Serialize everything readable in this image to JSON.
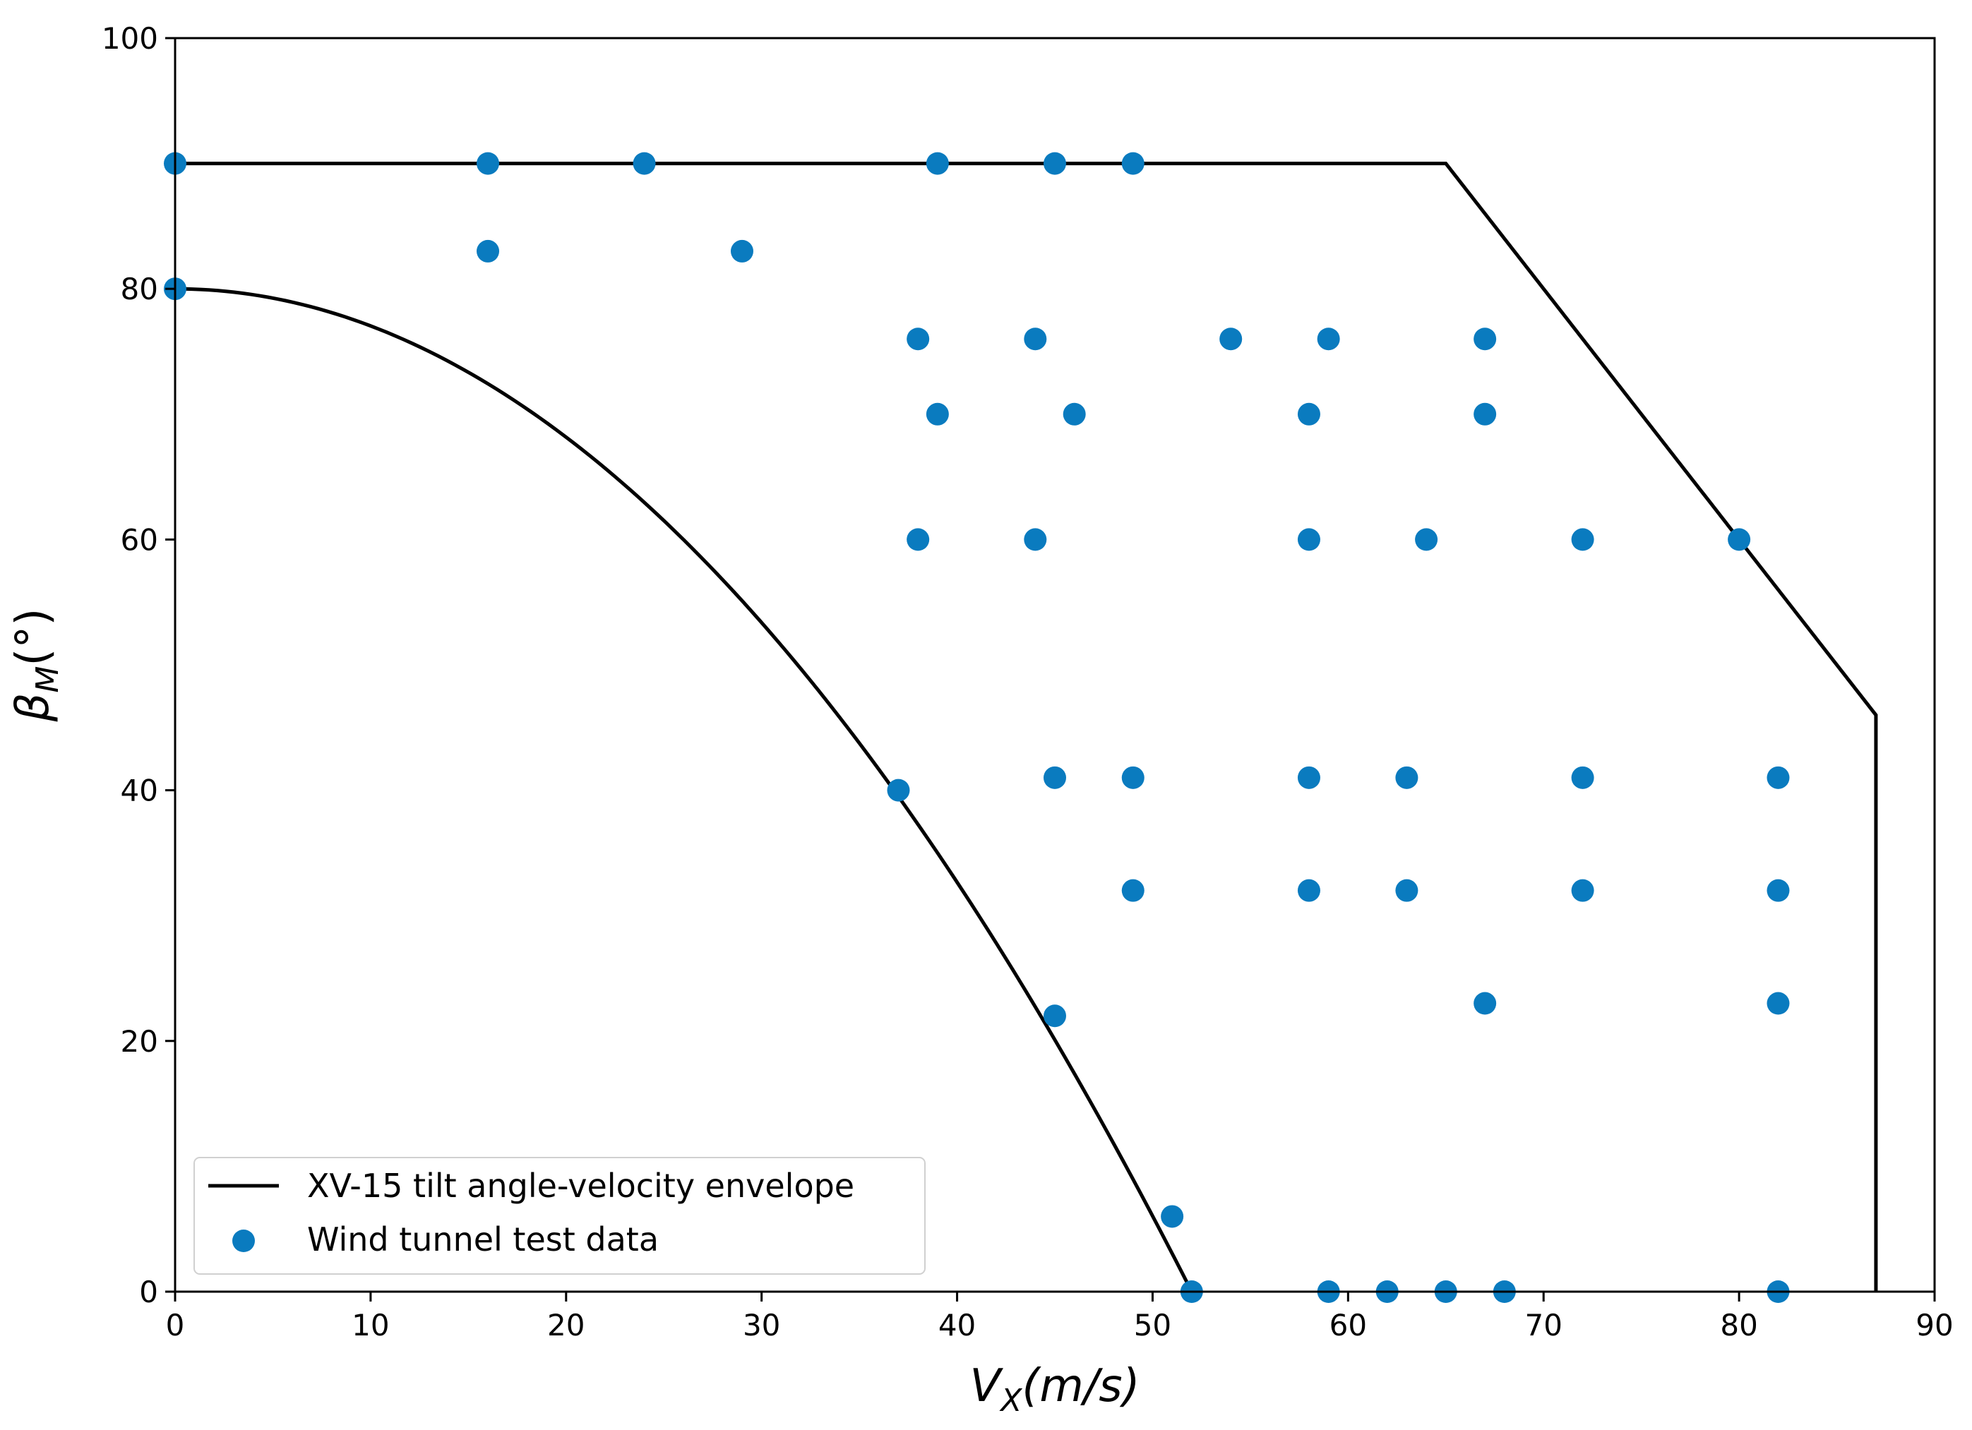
{
  "chart_data": {
    "type": "scatter",
    "title": "",
    "xlabel": "V",
    "xlabel_sub": "X",
    "xlabel_unit": "(m/s)",
    "ylabel": "β",
    "ylabel_sub": "M",
    "ylabel_unit": "(°)",
    "xlim": [
      0,
      90
    ],
    "ylim": [
      0,
      100
    ],
    "xticks": [
      0,
      10,
      20,
      30,
      40,
      50,
      60,
      70,
      80,
      90
    ],
    "yticks": [
      0,
      20,
      40,
      60,
      80,
      100
    ],
    "grid": false,
    "legend_position": "bottom-left",
    "series": [
      {
        "name": "XV-15 tilt angle-velocity envelope",
        "kind": "line",
        "color": "#000000",
        "segments": [
          {
            "x": [
              0,
              65,
              87,
              87
            ],
            "y": [
              90,
              90,
              46,
              0
            ]
          },
          {
            "curve": "quadratic",
            "x_range": [
              0,
              52
            ],
            "y_at_zero": 80,
            "zero_at_x": 52
          }
        ]
      },
      {
        "name": "Wind tunnel test data",
        "kind": "scatter",
        "color": "#0a7bbf",
        "points": [
          [
            0,
            90
          ],
          [
            16,
            90
          ],
          [
            24,
            90
          ],
          [
            39,
            90
          ],
          [
            45,
            90
          ],
          [
            49,
            90
          ],
          [
            0,
            80
          ],
          [
            16,
            83
          ],
          [
            29,
            83
          ],
          [
            38,
            76
          ],
          [
            44,
            76
          ],
          [
            54,
            76
          ],
          [
            59,
            76
          ],
          [
            67,
            76
          ],
          [
            39,
            70
          ],
          [
            46,
            70
          ],
          [
            58,
            70
          ],
          [
            67,
            70
          ],
          [
            38,
            60
          ],
          [
            44,
            60
          ],
          [
            58,
            60
          ],
          [
            64,
            60
          ],
          [
            72,
            60
          ],
          [
            80,
            60
          ],
          [
            37,
            40
          ],
          [
            45,
            41
          ],
          [
            49,
            41
          ],
          [
            58,
            41
          ],
          [
            63,
            41
          ],
          [
            72,
            41
          ],
          [
            82,
            41
          ],
          [
            49,
            32
          ],
          [
            58,
            32
          ],
          [
            63,
            32
          ],
          [
            72,
            32
          ],
          [
            82,
            32
          ],
          [
            45,
            22
          ],
          [
            67,
            23
          ],
          [
            82,
            23
          ],
          [
            51,
            6
          ],
          [
            52,
            0
          ],
          [
            59,
            0
          ],
          [
            62,
            0
          ],
          [
            65,
            0
          ],
          [
            68,
            0
          ],
          [
            82,
            0
          ]
        ]
      }
    ]
  }
}
